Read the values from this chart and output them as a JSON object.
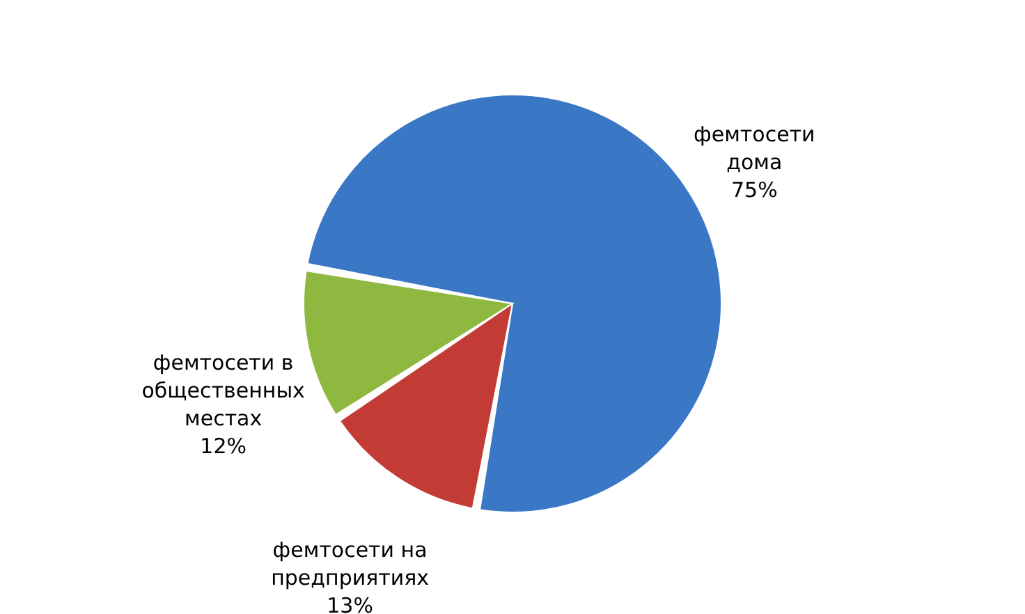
{
  "chart_data": {
    "type": "pie",
    "categories": [
      "фемтосети дома",
      "фемтосети на предприятиях",
      "фемтосети в общественных местах"
    ],
    "values": [
      75,
      13,
      12
    ],
    "colors": [
      "#3a77c4",
      "#c23b35",
      "#8fb840"
    ],
    "value_labels": [
      "75%",
      "13%",
      "12%"
    ],
    "legend": false
  }
}
